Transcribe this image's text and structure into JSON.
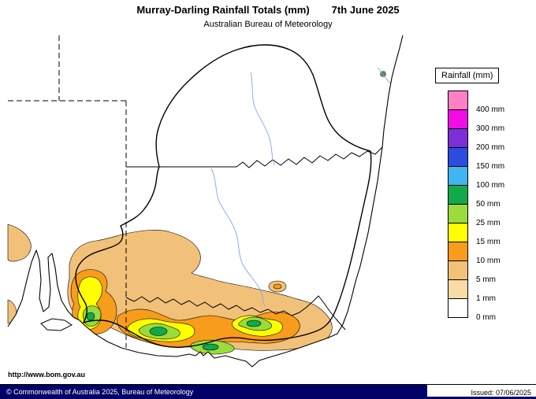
{
  "header": {
    "title": "Murray-Darling Rainfall Totals (mm)",
    "date": "7th June 2025",
    "subtitle": "Australian Bureau of Meteorology"
  },
  "map": {
    "url_label": "http://www.bom.gov.au"
  },
  "legend": {
    "title": "Rainfall (mm)",
    "bands": [
      {
        "label": "400 mm",
        "color": "#FF80C5"
      },
      {
        "label": "300 mm",
        "color": "#F20DE4"
      },
      {
        "label": "200 mm",
        "color": "#7B2FD4"
      },
      {
        "label": "150 mm",
        "color": "#2C4CE0"
      },
      {
        "label": "100 mm",
        "color": "#3FB5F2"
      },
      {
        "label": "50 mm",
        "color": "#12A94B"
      },
      {
        "label": "25 mm",
        "color": "#99DC3C"
      },
      {
        "label": "15 mm",
        "color": "#FFFF00"
      },
      {
        "label": "10 mm",
        "color": "#F89C1C"
      },
      {
        "label": "5 mm",
        "color": "#F2C179"
      },
      {
        "label": "1 mm",
        "color": "#F8DCA8"
      },
      {
        "label": "0 mm",
        "color": "#FFFFFF"
      }
    ]
  },
  "footer": {
    "copyright": "© Commonwealth of Australia 2025, Bureau of Meteorology",
    "issued": "Issued: 07/06/2025"
  }
}
